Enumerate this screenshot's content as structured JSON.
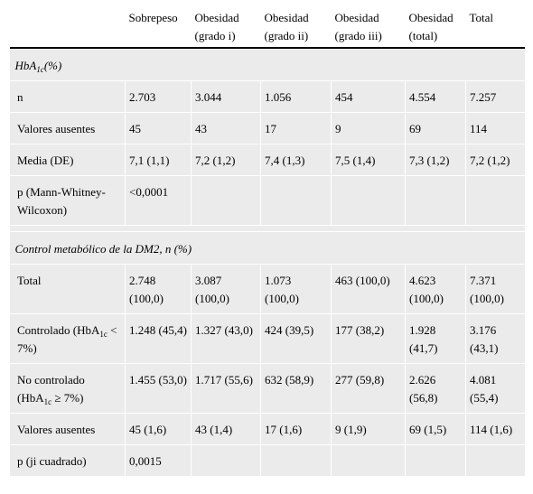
{
  "header": {
    "cols": [
      "",
      "Sobrepeso",
      "Obesidad (grado i)",
      "Obesidad (grado ii)",
      "Obesidad (grado iii)",
      "Obesidad (total)",
      "Total"
    ]
  },
  "section1": {
    "title_main": "HbA",
    "title_sub": "1c",
    "title_tail": "(%)",
    "rows": [
      {
        "label": "n",
        "values": [
          "2.703",
          "3.044",
          "1.056",
          "454",
          "4.554",
          "7.257"
        ]
      },
      {
        "label": "Valores ausentes",
        "values": [
          "45",
          "43",
          "17",
          "9",
          "69",
          "114"
        ]
      },
      {
        "label": "Media (DE)",
        "values": [
          "7,1 (1,1)",
          "7,2 (1,2)",
          "7,4 (1,3)",
          "7,5 (1,4)",
          "7,3 (1,2)",
          "7,2 (1,2)"
        ]
      },
      {
        "label": "p (Mann-Whitney-Wilcoxon)",
        "values": [
          "<0,0001",
          "",
          "",
          "",
          "",
          ""
        ]
      }
    ]
  },
  "section2": {
    "title": "Control metabólico de la DM2, n (%)",
    "rows": [
      {
        "label": "Total",
        "values": [
          "2.748 (100,0)",
          "3.087 (100,0)",
          "1.073 (100,0)",
          "463 (100,0)",
          "4.623 (100,0)",
          "7.371 (100,0)"
        ]
      },
      {
        "label_a": "Controlado (HbA",
        "label_sub": "1c",
        "label_b": " < 7%)",
        "values": [
          "1.248 (45,4)",
          "1.327 (43,0)",
          "424 (39,5)",
          "177 (38,2)",
          "1.928 (41,7)",
          "3.176 (43,1)"
        ]
      },
      {
        "label_a": "No controlado (HbA",
        "label_sub": "1c",
        "label_b": " ≥ 7%)",
        "values": [
          "1.455 (53,0)",
          "1.717 (55,6)",
          "632 (58,9)",
          "277 (59,8)",
          "2.626 (56,8)",
          "4.081 (55,4)"
        ]
      },
      {
        "label": "Valores ausentes",
        "values": [
          "45 (1,6)",
          "43 (1,4)",
          "17 (1,6)",
          "9 (1,9)",
          "69 (1,5)",
          "114 (1,6)"
        ]
      },
      {
        "label": "p (ji cuadrado)",
        "values": [
          "0,0015",
          "",
          "",
          "",
          "",
          ""
        ]
      }
    ]
  }
}
